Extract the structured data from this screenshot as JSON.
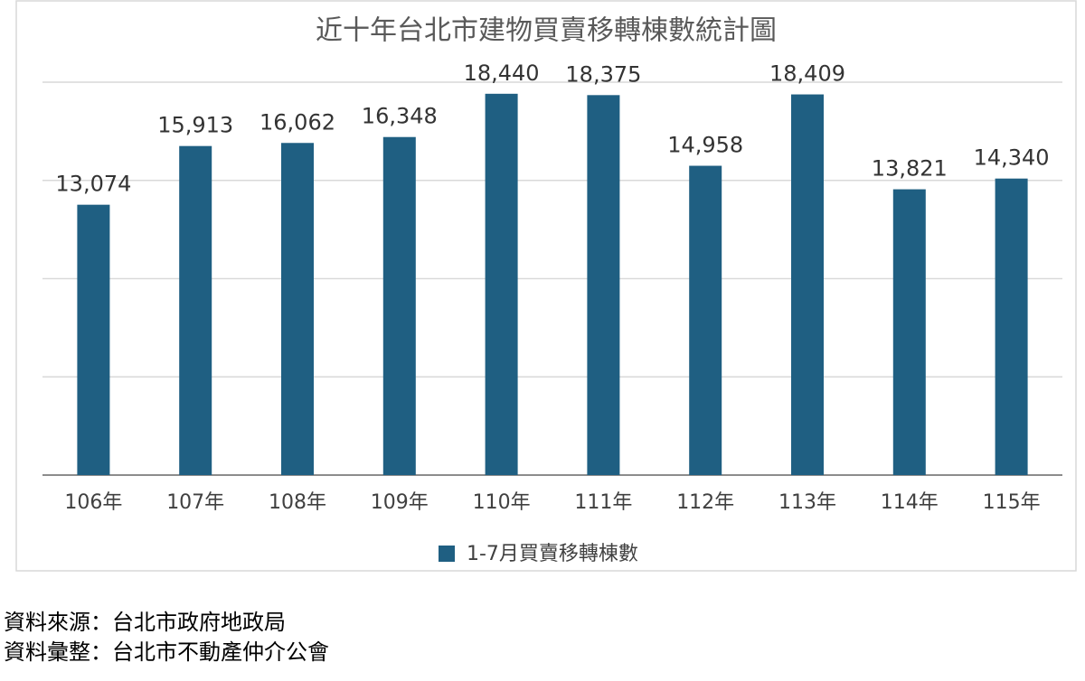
{
  "chart_data": {
    "type": "bar",
    "title": "近十年台北市建物買賣移轉棟數統計圖",
    "categories": [
      "106年",
      "107年",
      "108年",
      "109年",
      "110年",
      "111年",
      "112年",
      "113年",
      "114年",
      "115年"
    ],
    "series": [
      {
        "name": "1-7月買賣移轉棟數",
        "color": "#1f5f82",
        "values": [
          13074,
          15913,
          16062,
          16348,
          18440,
          18375,
          14958,
          18409,
          13821,
          14340
        ],
        "value_labels": [
          "13,074",
          "15,913",
          "16,062",
          "16,348",
          "18,440",
          "18,375",
          "14,958",
          "18,409",
          "13,821",
          "14,340"
        ]
      }
    ],
    "ylim": [
      0,
      19000
    ],
    "yticks": [
      0,
      4750,
      9500,
      14250,
      19000
    ],
    "grid": true,
    "legend": "bottom"
  },
  "footer": [
    "資料來源：台北市政府地政局",
    "資料彙整：台北市不動產仲介公會"
  ]
}
